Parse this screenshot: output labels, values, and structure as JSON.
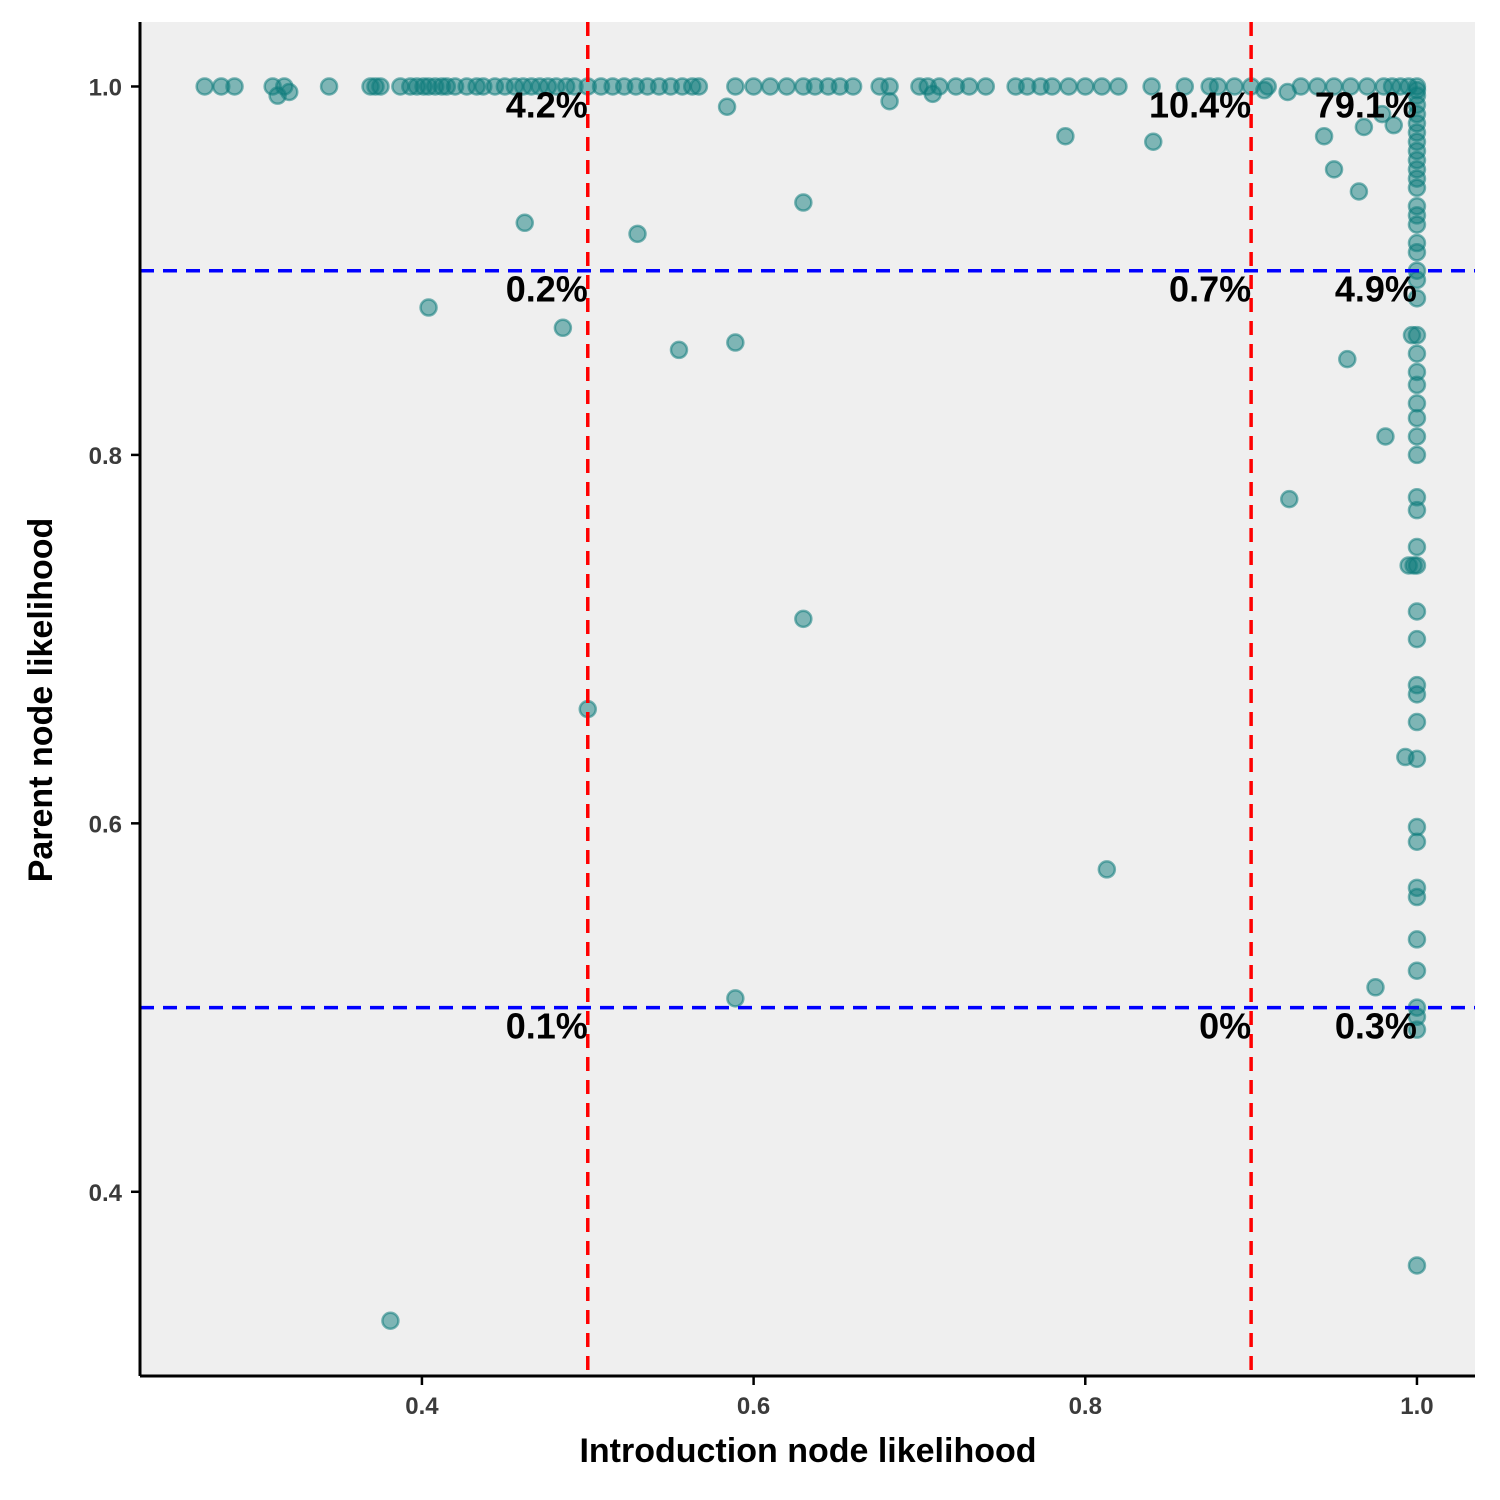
{
  "colors": {
    "panel_background": "#efefef",
    "point_fill": "#0e7c7b",
    "point_stroke": "#0e7c7b",
    "x_threshold_line": "#ff0000",
    "y_threshold_line": "#0000ff",
    "axis_line": "#000000"
  },
  "chart_data": {
    "type": "scatter",
    "title": "",
    "xlabel": "Introduction node likelihood",
    "ylabel": "Parent node likelihood",
    "xlim": [
      0.23,
      1.035
    ],
    "ylim": [
      0.3,
      1.035
    ],
    "x_ticks": [
      0.4,
      0.6,
      0.8,
      1.0
    ],
    "x_tick_labels": [
      "0.4",
      "0.6",
      "0.8",
      "1.0"
    ],
    "y_ticks": [
      0.4,
      0.6,
      0.8,
      1.0
    ],
    "y_tick_labels": [
      "0.4",
      "0.6",
      "0.8",
      "1.0"
    ],
    "grid": false,
    "x_thresholds": [
      0.5,
      0.9
    ],
    "y_thresholds": [
      0.5,
      0.9
    ],
    "quadrant_labels": [
      {
        "text": "4.2%",
        "x": 0.5,
        "y": 1.0
      },
      {
        "text": "10.4%",
        "x": 0.9,
        "y": 1.0
      },
      {
        "text": "79.1%",
        "x": 1.0,
        "y": 1.0
      },
      {
        "text": "0.2%",
        "x": 0.5,
        "y": 0.9
      },
      {
        "text": "0.7%",
        "x": 0.9,
        "y": 0.9
      },
      {
        "text": "4.9%",
        "x": 1.0,
        "y": 0.9
      },
      {
        "text": "0.1%",
        "x": 0.5,
        "y": 0.5
      },
      {
        "text": "0%",
        "x": 0.9,
        "y": 0.5
      },
      {
        "text": "0.3%",
        "x": 1.0,
        "y": 0.5
      }
    ],
    "top_row_x": [
      0.269,
      0.279,
      0.287,
      0.31,
      0.317,
      0.344,
      0.369,
      0.372,
      0.375,
      0.387,
      0.393,
      0.397,
      0.401,
      0.404,
      0.408,
      0.412,
      0.415,
      0.42,
      0.427,
      0.433,
      0.437,
      0.444,
      0.45,
      0.456,
      0.461,
      0.466,
      0.471,
      0.476,
      0.481,
      0.487,
      0.492,
      0.5,
      0.508,
      0.515,
      0.522,
      0.529,
      0.536,
      0.543,
      0.55,
      0.557,
      0.563,
      0.567,
      0.589,
      0.6,
      0.61,
      0.62,
      0.63,
      0.637,
      0.645,
      0.652,
      0.66,
      0.676,
      0.682,
      0.7,
      0.705,
      0.712,
      0.722,
      0.73,
      0.74,
      0.758,
      0.765,
      0.773,
      0.78,
      0.79,
      0.8,
      0.81,
      0.82,
      0.84,
      0.86,
      0.875,
      0.88,
      0.89,
      0.9,
      0.91,
      0.93,
      0.94,
      0.95,
      0.96,
      0.97,
      0.98,
      0.985,
      0.99,
      0.995,
      1.0
    ],
    "right_column_y": [
      0.998,
      0.995,
      0.99,
      0.985,
      0.98,
      0.975,
      0.97,
      0.965,
      0.96,
      0.955,
      0.95,
      0.945,
      0.935,
      0.93,
      0.925,
      0.915,
      0.91,
      0.9,
      0.895,
      0.885,
      0.865,
      0.855,
      0.845,
      0.838,
      0.828,
      0.82,
      0.81,
      0.8,
      0.777,
      0.77,
      0.75,
      0.74,
      0.715,
      0.7,
      0.675,
      0.67,
      0.655,
      0.635,
      0.598,
      0.59,
      0.565,
      0.56,
      0.537,
      0.52,
      0.5,
      0.495,
      0.488,
      0.36
    ],
    "x": [
      0.313,
      0.32,
      0.584,
      0.682,
      0.708,
      0.788,
      0.841,
      0.908,
      0.922,
      0.944,
      0.95,
      0.965,
      0.968,
      0.979,
      0.986,
      0.462,
      0.53,
      0.63,
      0.404,
      0.485,
      0.555,
      0.589,
      0.958,
      0.981,
      0.923,
      0.995,
      0.63,
      0.5,
      0.993,
      0.813,
      0.975,
      0.589,
      0.381,
      0.997,
      0.998
    ],
    "y": [
      0.995,
      0.997,
      0.989,
      0.992,
      0.996,
      0.973,
      0.97,
      0.998,
      0.997,
      0.973,
      0.955,
      0.943,
      0.978,
      0.985,
      0.979,
      0.926,
      0.92,
      0.937,
      0.88,
      0.869,
      0.857,
      0.861,
      0.852,
      0.81,
      0.776,
      0.74,
      0.711,
      0.662,
      0.636,
      0.575,
      0.511,
      0.505,
      0.33,
      0.865,
      0.74
    ]
  }
}
